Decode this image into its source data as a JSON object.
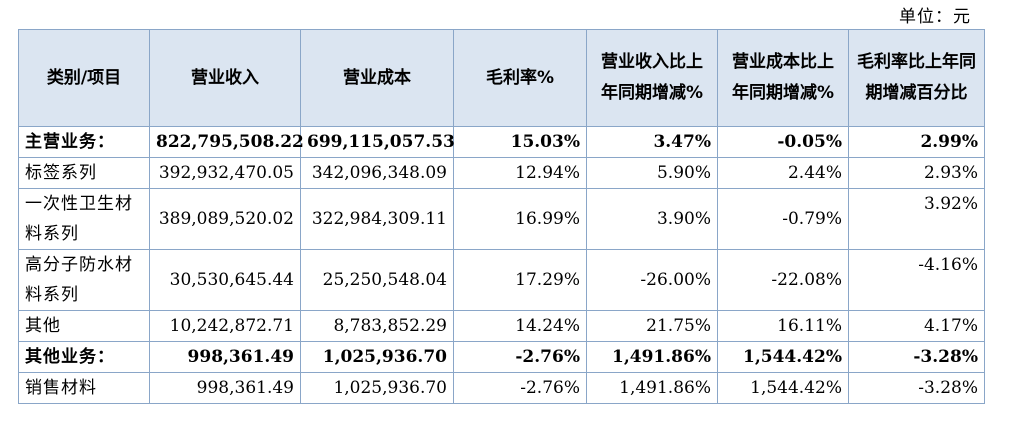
{
  "unit_label": "单位：元",
  "headers": {
    "category": "类别/项目",
    "revenue": "营业收入",
    "cost": "营业成本",
    "gross_margin": "毛利率%",
    "revenue_change": "营业收入比上年同期增减%",
    "cost_change": "营业成本比上年同期增减%",
    "margin_change": "毛利率比上年同期增减百分比"
  },
  "rows": [
    {
      "category": "主营业务：",
      "revenue": "822,795,508.22",
      "cost": "699,115,057.53",
      "gross_margin": "15.03%",
      "revenue_change": "3.47%",
      "cost_change": "-0.05%",
      "margin_change": "2.99%"
    },
    {
      "category": "标签系列",
      "revenue": "392,932,470.05",
      "cost": "342,096,348.09",
      "gross_margin": "12.94%",
      "revenue_change": "5.90%",
      "cost_change": "2.44%",
      "margin_change": "2.93%"
    },
    {
      "category": "一次性卫生材料系列",
      "revenue": "389,089,520.02",
      "cost": "322,984,309.11",
      "gross_margin": "16.99%",
      "revenue_change": "3.90%",
      "cost_change": "-0.79%",
      "margin_change": "3.92%"
    },
    {
      "category": "高分子防水材料系列",
      "revenue": "30,530,645.44",
      "cost": "25,250,548.04",
      "gross_margin": "17.29%",
      "revenue_change": "-26.00%",
      "cost_change": "-22.08%",
      "margin_change": "-4.16%"
    },
    {
      "category": "其他",
      "revenue": "10,242,872.71",
      "cost": "8,783,852.29",
      "gross_margin": "14.24%",
      "revenue_change": "21.75%",
      "cost_change": "16.11%",
      "margin_change": "4.17%"
    },
    {
      "category": "其他业务：",
      "revenue": "998,361.49",
      "cost": "1,025,936.70",
      "gross_margin": "-2.76%",
      "revenue_change": "1,491.86%",
      "cost_change": "1,544.42%",
      "margin_change": "-3.28%"
    },
    {
      "category": "销售材料",
      "revenue": "998,361.49",
      "cost": "1,025,936.70",
      "gross_margin": "-2.76%",
      "revenue_change": "1,491.86%",
      "cost_change": "1,544.42%",
      "margin_change": "-3.28%"
    }
  ],
  "colors": {
    "header_bg": "#dbe5f1",
    "border": "#8aa6c8"
  }
}
